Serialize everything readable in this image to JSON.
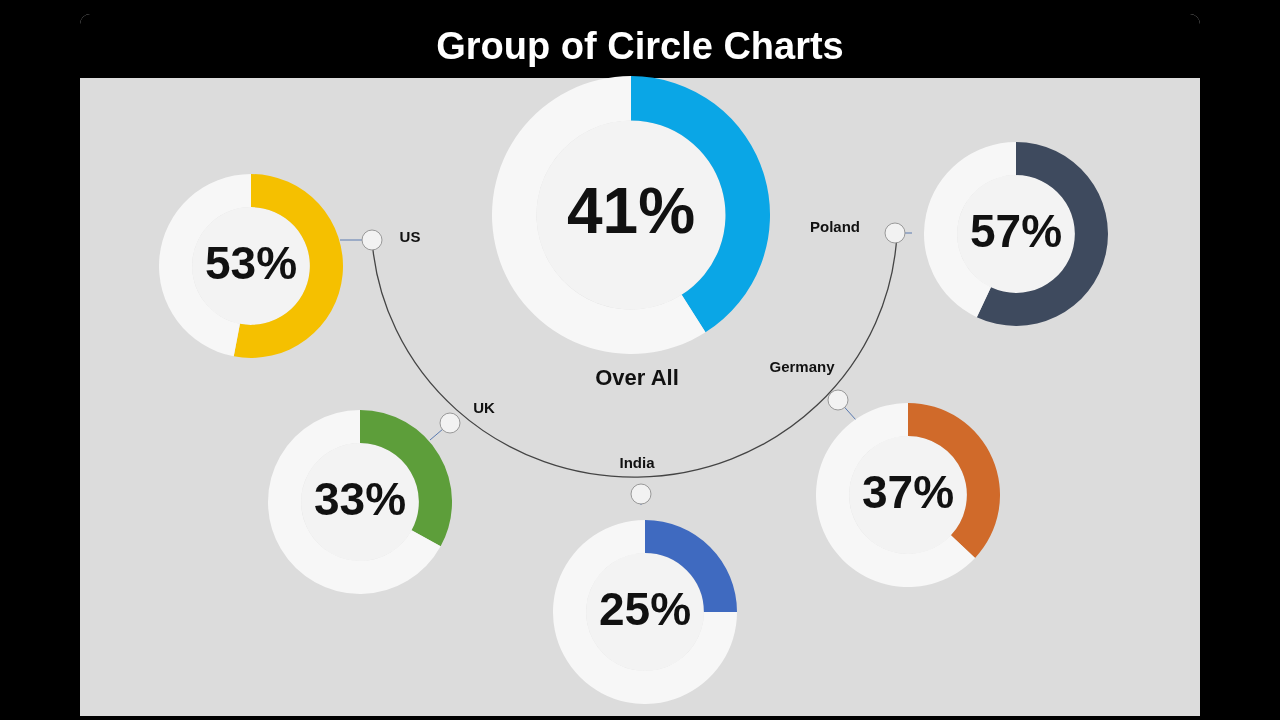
{
  "chart_data": [
    {
      "type": "other",
      "title": "Group of Circle Charts"
    },
    {
      "type": "donut",
      "title": "US",
      "categories": [
        null,
        null
      ],
      "values": [
        53,
        47
      ],
      "colors": [
        "#f5c000",
        "#f7f7f7"
      ],
      "value_labels": [
        "53%",
        null
      ],
      "legend": false
    },
    {
      "type": "donut",
      "title": "Over All",
      "categories": [
        null,
        null
      ],
      "values": [
        41,
        59
      ],
      "colors": [
        "#0aa6e6",
        "#f7f7f7"
      ],
      "value_labels": [
        "41%",
        null
      ],
      "legend": false
    },
    {
      "type": "donut",
      "title": "Poland",
      "categories": [
        null,
        null
      ],
      "values": [
        57,
        43
      ],
      "colors": [
        "#3e4a5e",
        "#f7f7f7"
      ],
      "value_labels": [
        "57%",
        null
      ],
      "legend": false
    },
    {
      "type": "donut",
      "title": "UK",
      "categories": [
        null,
        null
      ],
      "values": [
        33,
        67
      ],
      "colors": [
        "#5d9e3a",
        "#f7f7f7"
      ],
      "value_labels": [
        "33%",
        null
      ],
      "legend": false
    },
    {
      "type": "donut",
      "title": "India",
      "categories": [
        null,
        null
      ],
      "values": [
        25,
        75
      ],
      "colors": [
        "#3f6ac0",
        "#f7f7f7"
      ],
      "value_labels": [
        "25%",
        null
      ],
      "legend": false
    },
    {
      "type": "donut",
      "title": "Germany",
      "categories": [
        null,
        null
      ],
      "values": [
        37,
        63
      ],
      "colors": [
        "#d06a2a",
        "#f7f7f7"
      ],
      "value_labels": [
        "37%",
        null
      ],
      "legend": false
    }
  ]
}
